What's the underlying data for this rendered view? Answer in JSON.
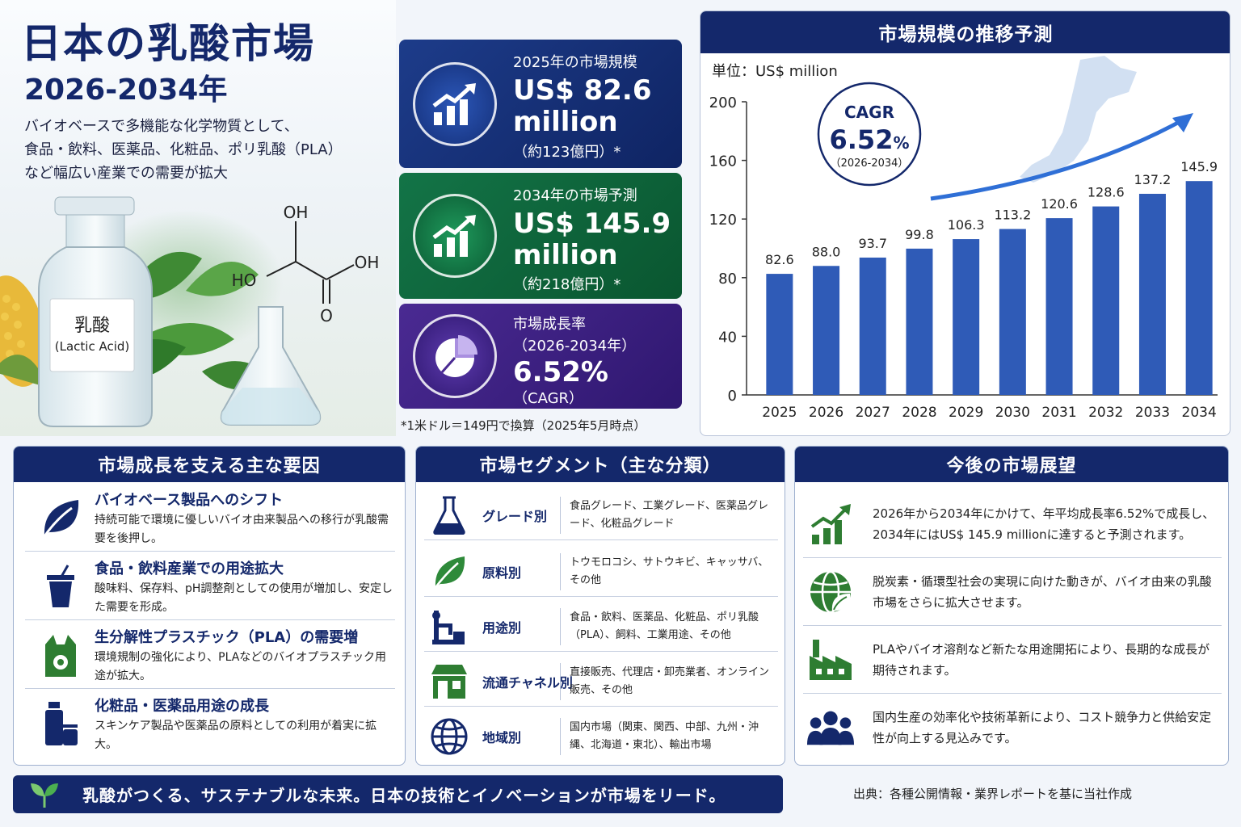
{
  "hero": {
    "title": "日本の乳酸市場",
    "period": "2026-2034年",
    "description": [
      "バイオベースで多機能な化学物質として、",
      "食品・飲料、医薬品、化粧品、ポリ乳酸（PLA）",
      "など幅広い産業での需要が拡大"
    ],
    "bottle_label": "乳酸",
    "bottle_label_en": "(Lactic Acid)",
    "formula": {
      "oh_top": "OH",
      "ho_left": "HO",
      "oh_right": "OH",
      "o_bottom": "O"
    }
  },
  "kpis": [
    {
      "label": "2025年の市場規模",
      "value": "US$ 82.6",
      "value2": "million",
      "sub": "（約123億円）*",
      "icon": "growth-chart-icon",
      "color": "#1d3c8a"
    },
    {
      "label": "2034年の市場予測",
      "value": "US$ 145.9",
      "value2": "million",
      "sub": "（約218億円）*",
      "icon": "growth-chart-icon",
      "color": "#137447"
    },
    {
      "label": "市場成長率",
      "label2": "（2026-2034年）",
      "value": "6.52%",
      "sub": "（CAGR）",
      "icon": "pie-chart-icon",
      "color": "#4a2a92"
    }
  ],
  "exchange_note": "*1米ドル＝149円で換算（2025年5月時点）",
  "chart": {
    "header": "市場規模の推移予測",
    "unit": "単位：US$ million",
    "cagr_label": "CAGR",
    "cagr_value": "6.52",
    "cagr_pct": "%",
    "cagr_period": "（2026-2034）"
  },
  "chart_data": {
    "type": "bar",
    "categories": [
      "2025",
      "2026",
      "2027",
      "2028",
      "2029",
      "2030",
      "2031",
      "2032",
      "2033",
      "2034"
    ],
    "values": [
      82.6,
      88.0,
      93.7,
      99.8,
      106.3,
      113.2,
      120.6,
      128.6,
      137.2,
      145.9
    ],
    "labels": [
      "82.6",
      "88.0",
      "93.7",
      "99.8",
      "106.3",
      "113.2",
      "120.6",
      "128.6",
      "137.2",
      "145.9"
    ],
    "ylim": [
      0,
      200
    ],
    "yticks": [
      0,
      40,
      80,
      120,
      160,
      200
    ],
    "title": "市場規模の推移予測",
    "ylabel": "単位：US$ million",
    "xlabel": "",
    "grid": false,
    "color": "#2f5bb7"
  },
  "factors": {
    "header": "市場成長を支える主な要因",
    "items": [
      {
        "title": "バイオベース製品へのシフト",
        "desc": "持続可能で環境に優しいバイオ由来製品への移行が乳酸需要を後押し。",
        "icon": "leaf-icon"
      },
      {
        "title": "食品・飲料産業での用途拡大",
        "desc": "酸味料、保存料、pH調整剤としての使用が増加し、安定した需要を形成。",
        "icon": "cup-icon"
      },
      {
        "title": "生分解性プラスチック（PLA）の需要増",
        "desc": "環境規制の強化により、PLAなどのバイオプラスチック用途が拡大。",
        "icon": "recycle-bag-icon"
      },
      {
        "title": "化粧品・医薬品用途の成長",
        "desc": "スキンケア製品や医薬品の原料としての利用が着実に拡大。",
        "icon": "cosmetics-icon"
      }
    ]
  },
  "segments": {
    "header": "市場セグメント（主な分類）",
    "items": [
      {
        "name": "グレード別",
        "value": "食品グレード、工業グレード、医薬品グレード、化粧品グレード",
        "icon": "flask-icon"
      },
      {
        "name": "原料別",
        "value": "トウモロコシ、サトウキビ、キャッサバ、その他",
        "icon": "leaf-icon"
      },
      {
        "name": "用途別",
        "value": "食品・飲料、医薬品、化粧品、ポリ乳酸（PLA）、飼料、工業用途、その他",
        "icon": "microscope-icon"
      },
      {
        "name": "流通チャネル別",
        "value": "直接販売、代理店・卸売業者、オンライン販売、その他",
        "icon": "store-icon"
      },
      {
        "name": "地域別",
        "value": "国内市場（関東、関西、中部、九州・沖縄、北海道・東北）、輸出市場",
        "icon": "globe-icon"
      }
    ]
  },
  "outlook": {
    "header": "今後の市場展望",
    "items": [
      {
        "text": "2026年から2034年にかけて、年平均成長率6.52%で成長し、2034年にはUS$ 145.9 millionに達すると予測されます。",
        "icon": "growth-chart-icon"
      },
      {
        "text": "脱炭素・循環型社会の実現に向けた動きが、バイオ由来の乳酸市場をさらに拡大させます。",
        "icon": "eco-globe-icon"
      },
      {
        "text": "PLAやバイオ溶剤など新たな用途開拓により、長期的な成長が期待されます。",
        "icon": "factory-icon"
      },
      {
        "text": "国内生産の効率化や技術革新により、コスト競争力と供給安定性が向上する見込みです。",
        "icon": "people-icon"
      }
    ]
  },
  "banner": {
    "text": "乳酸がつくる、サステナブルな未来。日本の技術とイノベーションが市場をリード。",
    "icon": "sprout-icon"
  },
  "source": "出典：各種公開情報・業界レポートを基に当社作成",
  "colors": {
    "navy": "#14286b",
    "green": "#2e7d32",
    "purple": "#4a2a92",
    "bar": "#2f5bb7"
  }
}
